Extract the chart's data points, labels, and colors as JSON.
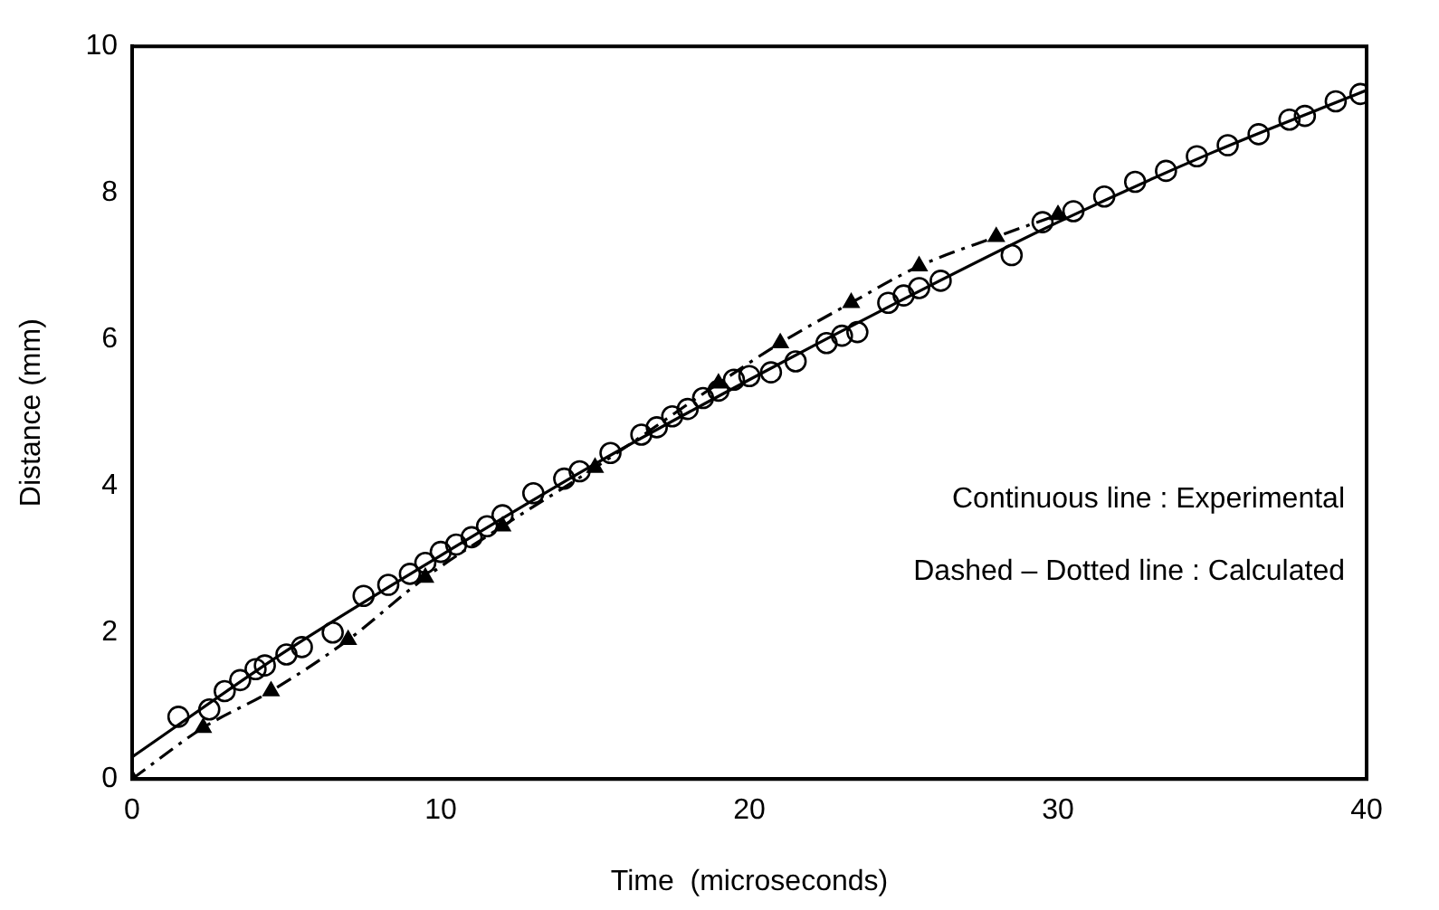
{
  "chart_data": {
    "type": "scatter",
    "xlabel": "Time  (microseconds)",
    "ylabel": "Distance (mm)",
    "xlim": [
      0,
      40
    ],
    "xticks": [
      0,
      10,
      20,
      30,
      40
    ],
    "ylim": [
      0,
      10
    ],
    "yticks": [
      0,
      2,
      4,
      6,
      8,
      10
    ],
    "grid": false,
    "legend": false,
    "annotations": [
      "Continuous line : Experimental",
      "Dashed – Dotted line : Calculated"
    ],
    "series": [
      {
        "color": "#000000",
        "marker": "circle",
        "x": [
          1.5,
          2.5,
          3,
          3.5,
          4,
          4.3,
          5,
          5.5,
          6.5,
          7.5,
          8.3,
          9,
          9.5,
          10,
          10.5,
          11,
          11.5,
          12,
          13,
          14,
          14.5,
          15.5,
          16.5,
          17,
          17.5,
          18,
          18.5,
          19,
          19.5,
          20,
          20.7,
          21.5,
          22.5,
          23,
          23.5,
          24.5,
          25,
          25.5,
          26.2,
          28.5,
          29.5,
          30.5,
          31.5,
          32.5,
          33.5,
          34.5,
          35.5,
          36.5,
          37.5,
          38,
          39,
          39.8
        ],
        "values": [
          0.85,
          0.95,
          1.2,
          1.35,
          1.5,
          1.55,
          1.7,
          1.8,
          2.0,
          2.5,
          2.65,
          2.8,
          2.95,
          3.1,
          3.2,
          3.3,
          3.45,
          3.6,
          3.9,
          4.1,
          4.2,
          4.45,
          4.7,
          4.8,
          4.95,
          5.05,
          5.2,
          5.3,
          5.45,
          5.5,
          5.55,
          5.7,
          5.95,
          6.05,
          6.1,
          6.5,
          6.6,
          6.7,
          6.8,
          7.15,
          7.6,
          7.75,
          7.95,
          8.15,
          8.3,
          8.5,
          8.65,
          8.8,
          9.0,
          9.05,
          9.25,
          9.35
        ]
      },
      {
        "type": "line",
        "color": "#000000",
        "marker": "none",
        "line_style": "solid",
        "x": [
          0,
          5,
          10,
          15,
          20,
          25,
          30,
          35,
          40
        ],
        "values": [
          0.3,
          1.75,
          3.05,
          4.3,
          5.45,
          6.55,
          7.6,
          8.55,
          9.4
        ]
      },
      {
        "type": "line",
        "color": "#000000",
        "marker": "triangle",
        "line_style": "dashed",
        "x": [
          0,
          2.3,
          4.5,
          7,
          9.5,
          12,
          15,
          19,
          21,
          23.3,
          25.5,
          28,
          30
        ],
        "values": [
          0,
          0.7,
          1.2,
          1.9,
          2.75,
          3.45,
          4.25,
          5.4,
          5.95,
          6.5,
          7.0,
          7.4,
          7.7
        ]
      }
    ]
  }
}
